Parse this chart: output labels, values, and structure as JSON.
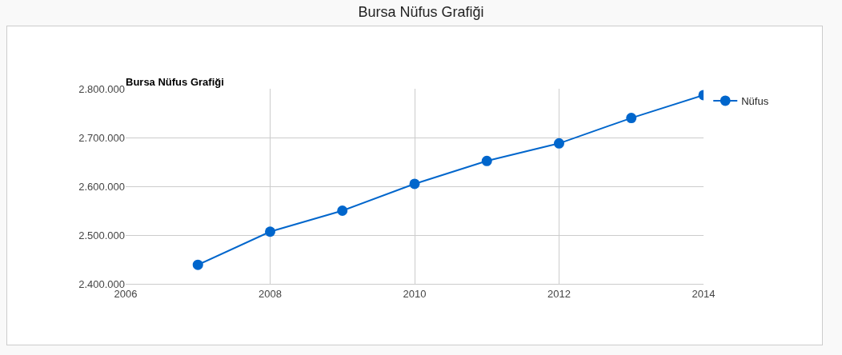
{
  "chart_data": {
    "type": "line",
    "title": "Bursa Nüfus Grafiği",
    "subtitle": "Bursa Nüfus Grafiği",
    "x": [
      2007,
      2008,
      2009,
      2010,
      2011,
      2012,
      2013,
      2014
    ],
    "series": [
      {
        "name": "Nüfus",
        "color": "#0066cc",
        "values": [
          2439000,
          2507000,
          2550000,
          2605000,
          2652000,
          2688000,
          2740000,
          2787000
        ]
      }
    ],
    "xlim": [
      2006,
      2014
    ],
    "xticks": [
      2006,
      2008,
      2010,
      2012,
      2014
    ],
    "ylim": [
      2400000,
      2800000
    ],
    "yticks": [
      {
        "value": 2400000,
        "label": "2.400.000"
      },
      {
        "value": 2500000,
        "label": "2.500.000"
      },
      {
        "value": 2600000,
        "label": "2.600.000"
      },
      {
        "value": 2700000,
        "label": "2.700.000"
      },
      {
        "value": 2800000,
        "label": "2.800.000"
      }
    ],
    "grid": true,
    "legend": "top right",
    "marker": "circle",
    "line_style": "solid"
  }
}
